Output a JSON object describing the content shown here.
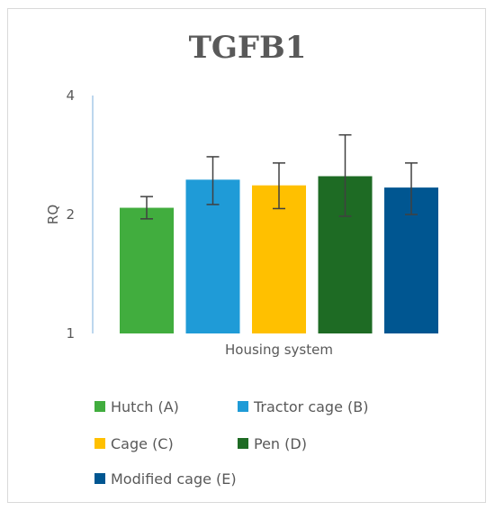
{
  "chart_data": {
    "type": "bar",
    "title": "TGFB1",
    "xlabel": "Housing system",
    "ylabel": "RQ",
    "y_scale": "log2",
    "ylim": [
      1,
      4
    ],
    "yticks": [
      1,
      2,
      4
    ],
    "grid": false,
    "legend_position": "bottom",
    "series": [
      {
        "name": "Hutch (A)",
        "value": 2.08,
        "error_low": 1.95,
        "error_high": 2.22,
        "color": "#41ad3e"
      },
      {
        "name": "Tractor cage (B)",
        "value": 2.45,
        "error_low": 2.12,
        "error_high": 2.8,
        "color": "#1f9bd7"
      },
      {
        "name": "Cage (C)",
        "value": 2.37,
        "error_low": 2.07,
        "error_high": 2.7,
        "color": "#ffc000"
      },
      {
        "name": "Pen (D)",
        "value": 2.5,
        "error_low": 1.98,
        "error_high": 3.18,
        "color": "#1e6b24"
      },
      {
        "name": "Modified cage (E)",
        "value": 2.34,
        "error_low": 2.0,
        "error_high": 2.7,
        "color": "#005691"
      }
    ]
  }
}
